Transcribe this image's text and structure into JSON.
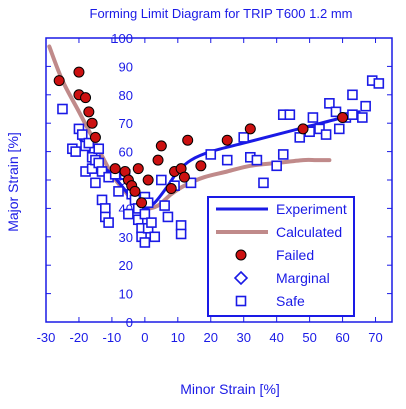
{
  "chart_data": {
    "type": "scatter",
    "title": "Forming Limit Diagram for TRIP T600 1.2 mm",
    "xlabel": "Minor Strain [%]",
    "ylabel": "Major Strain [%]",
    "xlim": [
      -30,
      75
    ],
    "ylim": [
      0,
      100
    ],
    "x_ticks": [
      -30,
      -20,
      -10,
      0,
      10,
      20,
      30,
      40,
      50,
      60,
      70
    ],
    "y_ticks": [
      0,
      10,
      20,
      30,
      40,
      50,
      60,
      70,
      80,
      90,
      100
    ],
    "grid": false,
    "legend_position": "bottom-right",
    "series": [
      {
        "name": "Experiment",
        "kind": "line",
        "color": "#1a1ae6",
        "points": [
          [
            -20,
            65
          ],
          [
            -15,
            57
          ],
          [
            -10,
            52
          ],
          [
            -5,
            45
          ],
          [
            -2,
            41
          ],
          [
            0,
            40
          ],
          [
            3,
            42
          ],
          [
            7,
            48
          ],
          [
            10,
            53
          ],
          [
            14,
            57
          ],
          [
            20,
            60
          ],
          [
            30,
            63
          ],
          [
            40,
            66
          ],
          [
            50,
            69
          ],
          [
            60,
            72
          ],
          [
            65,
            74
          ]
        ]
      },
      {
        "name": "Calculated",
        "kind": "line",
        "color": "#c08a8a",
        "points": [
          [
            -29,
            97
          ],
          [
            -25,
            85
          ],
          [
            -20,
            74
          ],
          [
            -15,
            63
          ],
          [
            -10,
            52
          ],
          [
            -6,
            46
          ],
          [
            -3,
            42
          ],
          [
            0,
            40
          ],
          [
            4,
            41
          ],
          [
            8,
            45
          ],
          [
            12,
            48
          ],
          [
            18,
            51
          ],
          [
            25,
            53
          ],
          [
            32,
            55
          ],
          [
            40,
            56
          ],
          [
            48,
            57
          ],
          [
            52,
            57
          ],
          [
            56,
            57
          ]
        ]
      },
      {
        "name": "Failed",
        "kind": "marker",
        "marker": "circle",
        "color": "#cc1111",
        "points": [
          [
            -26,
            85
          ],
          [
            -20,
            88
          ],
          [
            -20,
            80
          ],
          [
            -18,
            79
          ],
          [
            -17,
            74
          ],
          [
            -16,
            70
          ],
          [
            -15,
            65
          ],
          [
            -9,
            54
          ],
          [
            -6,
            53
          ],
          [
            -5,
            50
          ],
          [
            -4,
            48
          ],
          [
            -3,
            46
          ],
          [
            -2,
            54
          ],
          [
            -1,
            42
          ],
          [
            1,
            50
          ],
          [
            4,
            57
          ],
          [
            5,
            62
          ],
          [
            8,
            47
          ],
          [
            9,
            53
          ],
          [
            11,
            54
          ],
          [
            12,
            51
          ],
          [
            13,
            64
          ],
          [
            17,
            55
          ],
          [
            25,
            64
          ],
          [
            32,
            68
          ],
          [
            48,
            68
          ],
          [
            60,
            72
          ]
        ]
      },
      {
        "name": "Marginal",
        "kind": "marker",
        "marker": "diamond",
        "color": "#1a1ae6",
        "points": []
      },
      {
        "name": "Safe",
        "kind": "marker",
        "marker": "square",
        "color": "#1a1ae6",
        "points": [
          [
            -25,
            75
          ],
          [
            -22,
            61
          ],
          [
            -21,
            60
          ],
          [
            -20,
            68
          ],
          [
            -19,
            66
          ],
          [
            -18,
            62
          ],
          [
            -18,
            53
          ],
          [
            -17,
            63
          ],
          [
            -16,
            58
          ],
          [
            -16,
            54
          ],
          [
            -15,
            57
          ],
          [
            -15,
            49
          ],
          [
            -14,
            61
          ],
          [
            -14,
            56
          ],
          [
            -13,
            53
          ],
          [
            -13,
            43
          ],
          [
            -12,
            40
          ],
          [
            -12,
            37
          ],
          [
            -11,
            51
          ],
          [
            -11,
            35
          ],
          [
            -9,
            52
          ],
          [
            -8,
            46
          ],
          [
            -6,
            52
          ],
          [
            -5,
            38
          ],
          [
            -4,
            45
          ],
          [
            -3,
            43
          ],
          [
            -2,
            40
          ],
          [
            -2,
            36
          ],
          [
            -1,
            33
          ],
          [
            -1,
            30
          ],
          [
            0,
            44
          ],
          [
            0,
            38
          ],
          [
            0,
            28
          ],
          [
            1,
            42
          ],
          [
            1,
            33
          ],
          [
            2,
            35
          ],
          [
            3,
            30
          ],
          [
            5,
            50
          ],
          [
            6,
            41
          ],
          [
            7,
            37
          ],
          [
            9,
            48
          ],
          [
            11,
            34
          ],
          [
            11,
            31
          ],
          [
            14,
            49
          ],
          [
            20,
            59
          ],
          [
            25,
            57
          ],
          [
            30,
            65
          ],
          [
            32,
            58
          ],
          [
            34,
            57
          ],
          [
            36,
            49
          ],
          [
            40,
            55
          ],
          [
            42,
            59
          ],
          [
            42,
            73
          ],
          [
            44,
            73
          ],
          [
            47,
            65
          ],
          [
            50,
            67
          ],
          [
            51,
            72
          ],
          [
            53,
            68
          ],
          [
            55,
            66
          ],
          [
            56,
            77
          ],
          [
            58,
            74
          ],
          [
            59,
            68
          ],
          [
            61,
            72
          ],
          [
            63,
            73
          ],
          [
            63,
            80
          ],
          [
            66,
            72
          ],
          [
            67,
            76
          ],
          [
            69,
            85
          ],
          [
            71,
            84
          ]
        ]
      }
    ]
  }
}
